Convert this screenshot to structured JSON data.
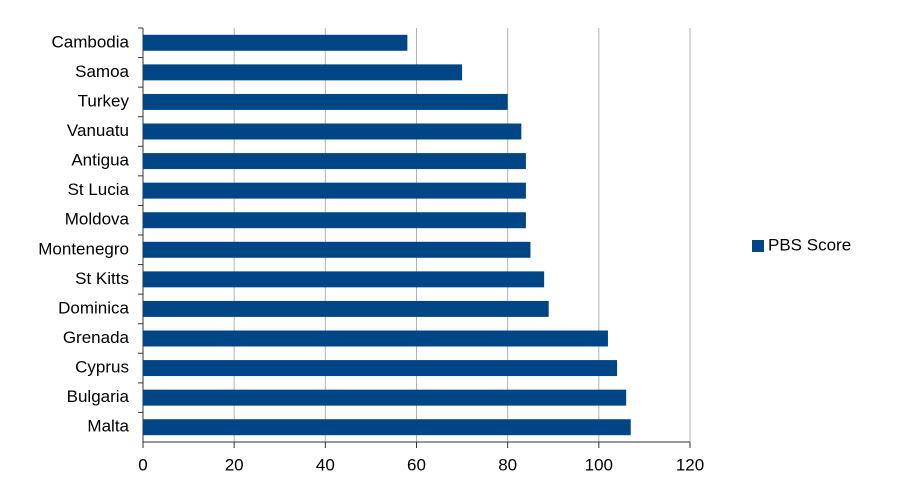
{
  "chart_data": {
    "type": "bar",
    "orientation": "horizontal",
    "categories": [
      "Cambodia",
      "Samoa",
      "Turkey",
      "Vanuatu",
      "Antigua",
      "St Lucia",
      "Moldova",
      "Montenegro",
      "St Kitts",
      "Dominica",
      "Grenada",
      "Cyprus",
      "Bulgaria",
      "Malta"
    ],
    "series": [
      {
        "name": "PBS Score",
        "color": "#004586",
        "values": [
          58,
          70,
          80,
          83,
          84,
          84,
          84,
          85,
          88,
          89,
          102,
          104,
          106,
          107
        ]
      }
    ],
    "xlim": [
      0,
      120
    ],
    "xticks": [
      0,
      20,
      40,
      60,
      80,
      100,
      120
    ],
    "grid": true,
    "legend": "right"
  }
}
